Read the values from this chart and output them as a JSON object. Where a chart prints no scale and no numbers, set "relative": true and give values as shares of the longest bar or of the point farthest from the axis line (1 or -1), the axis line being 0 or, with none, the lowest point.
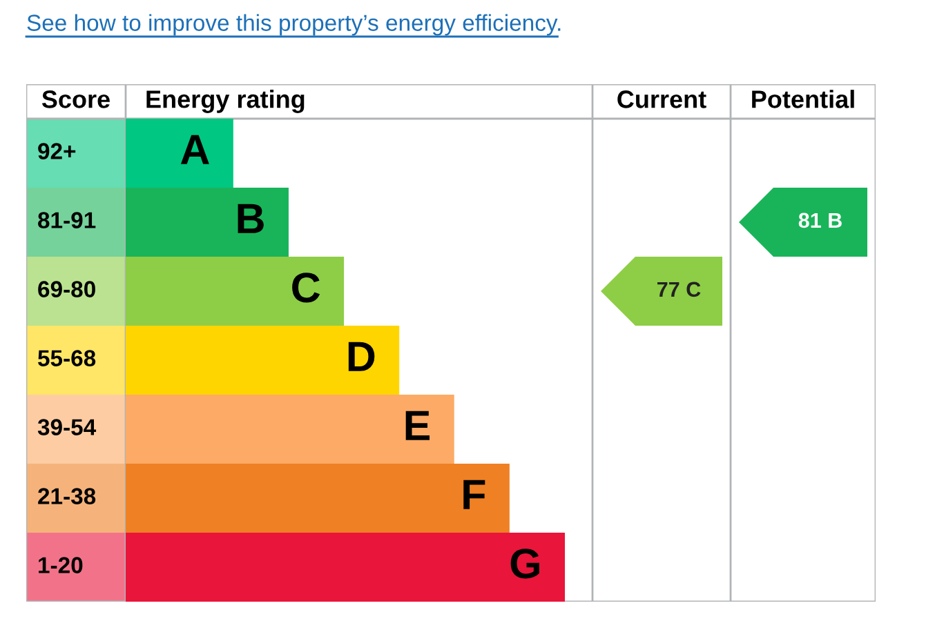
{
  "chart_data": {
    "type": "bar",
    "orientation": "horizontal",
    "relative": true,
    "title": "See how to improve this property’s energy efficiency.",
    "categories": [
      "A",
      "B",
      "C",
      "D",
      "E",
      "F",
      "G"
    ],
    "values": [
      0.245,
      0.371,
      0.497,
      0.623,
      0.748,
      0.874,
      1
    ],
    "colors": [
      "#00c781",
      "#19b459",
      "#8dce46",
      "#ffd500",
      "#fcaa65",
      "#ef8023",
      "#e9153b"
    ],
    "annotations": [
      "Score",
      "Energy rating",
      "Current",
      "Potential",
      "92+",
      "81-91",
      "69-80",
      "55-68",
      "39-54",
      "21-38",
      "1-20",
      "77 C",
      "81 B"
    ]
  }
}
